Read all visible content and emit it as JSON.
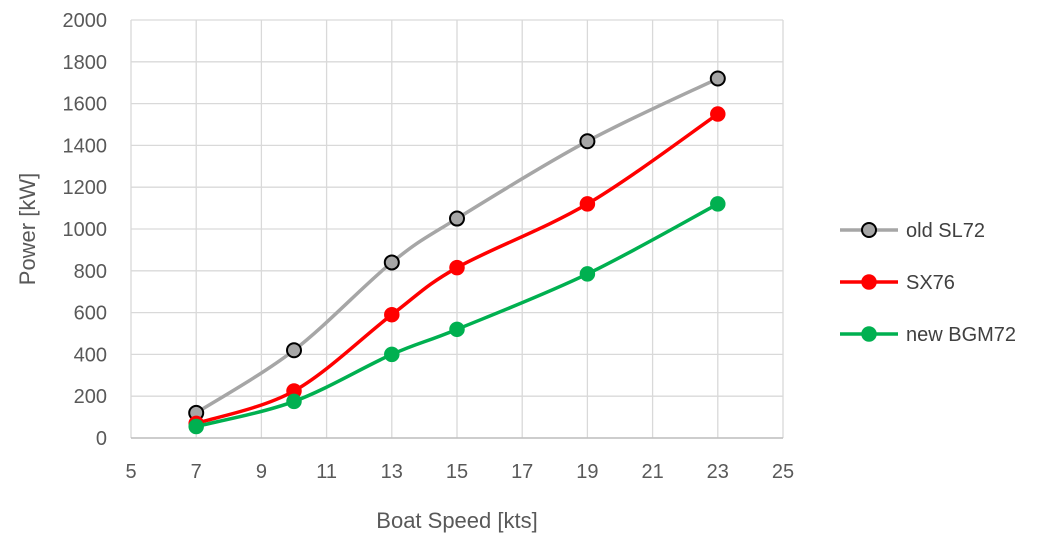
{
  "chart_data": {
    "type": "scatter",
    "title": "",
    "xlabel": "Boat Speed [kts]",
    "ylabel": "Power [kW]",
    "xlim": [
      5,
      25
    ],
    "ylim": [
      0,
      2000
    ],
    "x_ticks": [
      5,
      7,
      9,
      11,
      13,
      15,
      17,
      19,
      21,
      23,
      25
    ],
    "y_ticks": [
      0,
      200,
      400,
      600,
      800,
      1000,
      1200,
      1400,
      1600,
      1800,
      2000
    ],
    "grid": true,
    "smooth_lines": true,
    "legend_position": "right",
    "series": [
      {
        "name": "old SL72",
        "color": "#a6a6a6",
        "marker_fill": "#a6a6a6",
        "marker_edge": "#000000",
        "x": [
          7,
          10,
          13,
          15,
          19,
          23
        ],
        "y": [
          120,
          420,
          840,
          1050,
          1420,
          1720
        ]
      },
      {
        "name": "SX76",
        "color": "#ff0000",
        "marker_fill": "#ff0000",
        "marker_edge": "#ff0000",
        "x": [
          7,
          10,
          13,
          15,
          19,
          23
        ],
        "y": [
          70,
          225,
          590,
          815,
          1120,
          1550
        ]
      },
      {
        "name": "new BGM72",
        "color": "#00b050",
        "marker_fill": "#00b050",
        "marker_edge": "#00b050",
        "x": [
          7,
          10,
          13,
          15,
          19,
          23
        ],
        "y": [
          55,
          175,
          400,
          520,
          785,
          1120
        ]
      }
    ]
  }
}
